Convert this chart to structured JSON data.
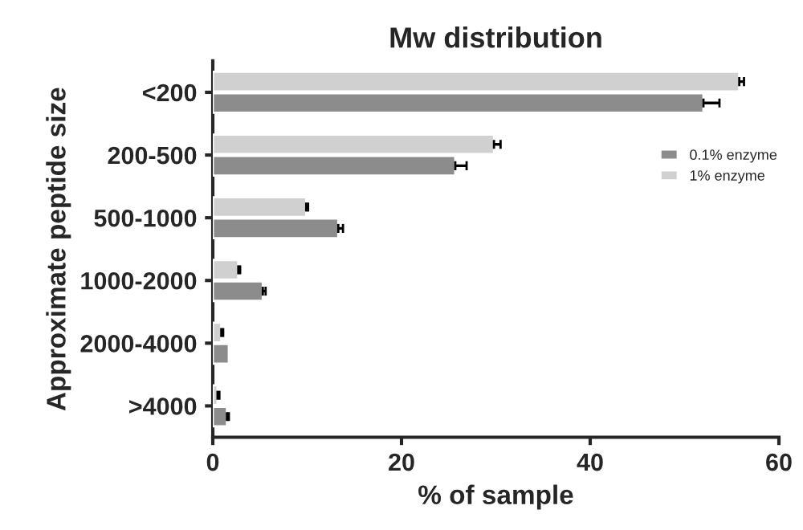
{
  "chart_data": {
    "type": "bar",
    "orientation": "horizontal",
    "title": "Mw distribution",
    "xlabel": "% of sample",
    "ylabel": "Approximate peptide size",
    "categories": [
      "<200",
      "200-500",
      "500-1000",
      "1000-2000",
      "2000-4000",
      ">4000"
    ],
    "series": [
      {
        "name": "0.1% enzyme",
        "color": "#8c8c8c",
        "values": [
          52.0,
          25.7,
          13.3,
          5.3,
          1.7,
          1.5
        ],
        "errors": [
          1.7,
          1.2,
          0.5,
          0.3,
          null,
          0.2
        ]
      },
      {
        "name": "1% enzyme",
        "color": "#d0d0d0",
        "values": [
          55.8,
          29.8,
          9.9,
          2.7,
          0.9,
          0.5
        ],
        "errors": [
          0.5,
          0.7,
          0.2,
          0.2,
          0.2,
          0.2
        ]
      }
    ],
    "xlim": [
      0,
      60
    ],
    "xticks": [
      0,
      20,
      40,
      60
    ],
    "legend": "right",
    "grid": false
  }
}
